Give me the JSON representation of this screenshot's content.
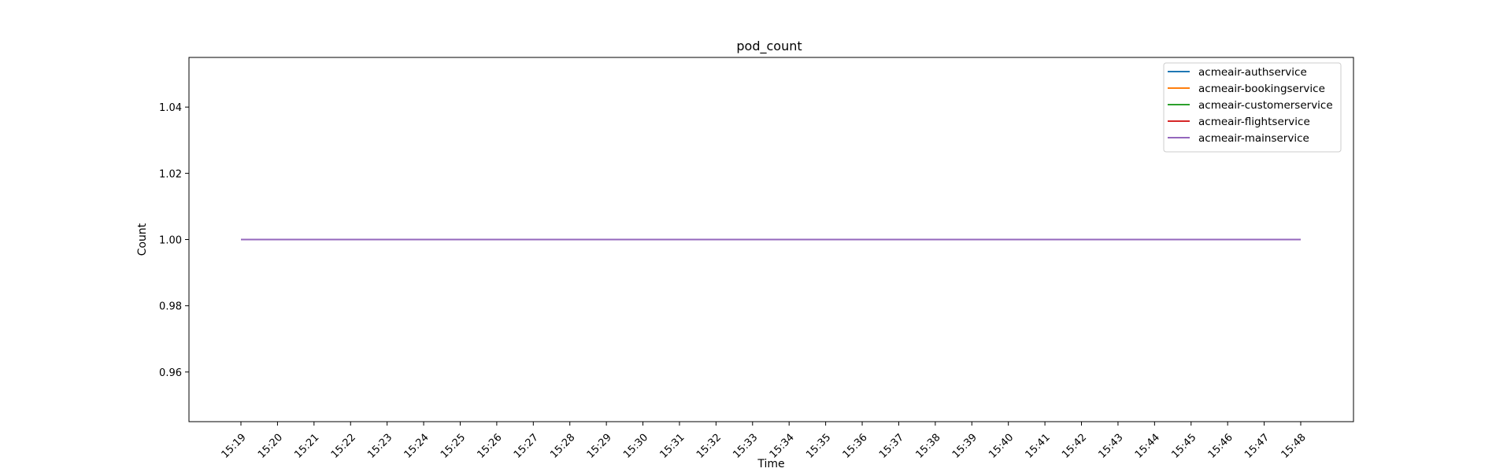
{
  "chart_data": {
    "type": "line",
    "title": "pod_count",
    "xlabel": "Time",
    "ylabel": "Count",
    "x": [
      "15:19",
      "15:20",
      "15:21",
      "15:22",
      "15:23",
      "15:24",
      "15:25",
      "15:26",
      "15:27",
      "15:28",
      "15:29",
      "15:30",
      "15:31",
      "15:32",
      "15:33",
      "15:34",
      "15:35",
      "15:36",
      "15:37",
      "15:38",
      "15:39",
      "15:40",
      "15:41",
      "15:42",
      "15:43",
      "15:44",
      "15:45",
      "15:46",
      "15:47",
      "15:48"
    ],
    "ylim": [
      0.945,
      1.055
    ],
    "yticks": [
      0.96,
      0.98,
      1.0,
      1.02,
      1.04
    ],
    "ytick_labels": [
      "0.96",
      "0.98",
      "1.00",
      "1.02",
      "1.04"
    ],
    "grid": false,
    "legend_position": "top-right",
    "series": [
      {
        "name": "acmeair-authservice",
        "color": "#1f77b4",
        "values": [
          1,
          1,
          1,
          1,
          1,
          1,
          1,
          1,
          1,
          1,
          1,
          1,
          1,
          1,
          1,
          1,
          1,
          1,
          1,
          1,
          1,
          1,
          1,
          1,
          1,
          1,
          1,
          1,
          1,
          1
        ]
      },
      {
        "name": "acmeair-bookingservice",
        "color": "#ff7f0e",
        "values": [
          1,
          1,
          1,
          1,
          1,
          1,
          1,
          1,
          1,
          1,
          1,
          1,
          1,
          1,
          1,
          1,
          1,
          1,
          1,
          1,
          1,
          1,
          1,
          1,
          1,
          1,
          1,
          1,
          1,
          1
        ]
      },
      {
        "name": "acmeair-customerservice",
        "color": "#2ca02c",
        "values": [
          1,
          1,
          1,
          1,
          1,
          1,
          1,
          1,
          1,
          1,
          1,
          1,
          1,
          1,
          1,
          1,
          1,
          1,
          1,
          1,
          1,
          1,
          1,
          1,
          1,
          1,
          1,
          1,
          1,
          1
        ]
      },
      {
        "name": "acmeair-flightservice",
        "color": "#d62728",
        "values": [
          1,
          1,
          1,
          1,
          1,
          1,
          1,
          1,
          1,
          1,
          1,
          1,
          1,
          1,
          1,
          1,
          1,
          1,
          1,
          1,
          1,
          1,
          1,
          1,
          1,
          1,
          1,
          1,
          1,
          1
        ]
      },
      {
        "name": "acmeair-mainservice",
        "color": "#9467bd",
        "values": [
          1,
          1,
          1,
          1,
          1,
          1,
          1,
          1,
          1,
          1,
          1,
          1,
          1,
          1,
          1,
          1,
          1,
          1,
          1,
          1,
          1,
          1,
          1,
          1,
          1,
          1,
          1,
          1,
          1,
          1
        ]
      }
    ]
  }
}
